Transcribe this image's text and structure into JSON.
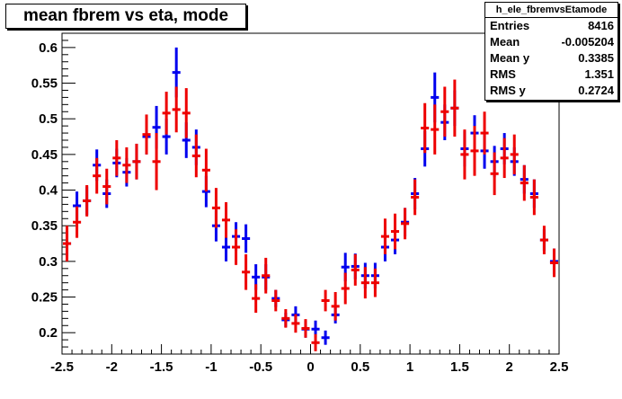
{
  "title": "mean fbrem vs eta, mode",
  "stats": {
    "name": "h_ele_fbremvsEtamode",
    "rows": [
      {
        "label": "Entries",
        "value": "8416"
      },
      {
        "label": "Mean",
        "value": "-0.005204"
      },
      {
        "label": "Mean y",
        "value": "0.3385"
      },
      {
        "label": "RMS",
        "value": "1.351"
      },
      {
        "label": "RMS y",
        "value": "0.2724"
      }
    ]
  },
  "chart_data": {
    "type": "scatter",
    "title": "mean fbrem vs eta, mode",
    "xlabel": "",
    "ylabel": "",
    "xlim": [
      -2.5,
      2.5
    ],
    "ylim": [
      0.17,
      0.62
    ],
    "x_ticks": [
      "-2.5",
      "-2",
      "-1.5",
      "-1",
      "-0.5",
      "0",
      "0.5",
      "1",
      "1.5",
      "2",
      "2.5"
    ],
    "y_ticks": [
      "0.2",
      "0.25",
      "0.3",
      "0.35",
      "0.4",
      "0.45",
      "0.5",
      "0.55",
      "0.6"
    ],
    "grid": false,
    "series": [
      {
        "color": "#0000ee",
        "points": [
          {
            "x": -2.45,
            "y": 0.325,
            "e": 0.018
          },
          {
            "x": -2.35,
            "y": 0.378,
            "e": 0.02
          },
          {
            "x": -2.25,
            "y": 0.385,
            "e": 0.02
          },
          {
            "x": -2.15,
            "y": 0.435,
            "e": 0.022
          },
          {
            "x": -2.05,
            "y": 0.395,
            "e": 0.02
          },
          {
            "x": -1.95,
            "y": 0.438,
            "e": 0.02
          },
          {
            "x": -1.85,
            "y": 0.425,
            "e": 0.02
          },
          {
            "x": -1.75,
            "y": 0.44,
            "e": 0.025
          },
          {
            "x": -1.65,
            "y": 0.475,
            "e": 0.025
          },
          {
            "x": -1.55,
            "y": 0.488,
            "e": 0.03
          },
          {
            "x": -1.45,
            "y": 0.475,
            "e": 0.025
          },
          {
            "x": -1.35,
            "y": 0.565,
            "e": 0.035
          },
          {
            "x": -1.25,
            "y": 0.47,
            "e": 0.025
          },
          {
            "x": -1.15,
            "y": 0.46,
            "e": 0.025
          },
          {
            "x": -1.05,
            "y": 0.398,
            "e": 0.022
          },
          {
            "x": -0.95,
            "y": 0.35,
            "e": 0.022
          },
          {
            "x": -0.85,
            "y": 0.32,
            "e": 0.02
          },
          {
            "x": -0.75,
            "y": 0.335,
            "e": 0.02
          },
          {
            "x": -0.65,
            "y": 0.332,
            "e": 0.02
          },
          {
            "x": -0.55,
            "y": 0.278,
            "e": 0.018
          },
          {
            "x": -0.45,
            "y": 0.278,
            "e": 0.018
          },
          {
            "x": -0.35,
            "y": 0.248,
            "e": 0.012
          },
          {
            "x": -0.25,
            "y": 0.218,
            "e": 0.01
          },
          {
            "x": -0.15,
            "y": 0.225,
            "e": 0.012
          },
          {
            "x": -0.05,
            "y": 0.205,
            "e": 0.012
          },
          {
            "x": 0.05,
            "y": 0.205,
            "e": 0.012
          },
          {
            "x": 0.15,
            "y": 0.193,
            "e": 0.01
          },
          {
            "x": 0.25,
            "y": 0.225,
            "e": 0.012
          },
          {
            "x": 0.35,
            "y": 0.292,
            "e": 0.02
          },
          {
            "x": 0.45,
            "y": 0.293,
            "e": 0.018
          },
          {
            "x": 0.55,
            "y": 0.28,
            "e": 0.018
          },
          {
            "x": 0.65,
            "y": 0.28,
            "e": 0.018
          },
          {
            "x": 0.75,
            "y": 0.32,
            "e": 0.02
          },
          {
            "x": 0.85,
            "y": 0.33,
            "e": 0.02
          },
          {
            "x": 0.95,
            "y": 0.355,
            "e": 0.02
          },
          {
            "x": 1.05,
            "y": 0.395,
            "e": 0.022
          },
          {
            "x": 1.15,
            "y": 0.458,
            "e": 0.025
          },
          {
            "x": 1.25,
            "y": 0.53,
            "e": 0.035
          },
          {
            "x": 1.35,
            "y": 0.495,
            "e": 0.025
          },
          {
            "x": 1.45,
            "y": 0.515,
            "e": 0.025
          },
          {
            "x": 1.55,
            "y": 0.458,
            "e": 0.025
          },
          {
            "x": 1.65,
            "y": 0.48,
            "e": 0.025
          },
          {
            "x": 1.75,
            "y": 0.455,
            "e": 0.025
          },
          {
            "x": 1.85,
            "y": 0.44,
            "e": 0.022
          },
          {
            "x": 1.95,
            "y": 0.458,
            "e": 0.022
          },
          {
            "x": 2.05,
            "y": 0.44,
            "e": 0.02
          },
          {
            "x": 2.15,
            "y": 0.415,
            "e": 0.02
          },
          {
            "x": 2.25,
            "y": 0.395,
            "e": 0.02
          },
          {
            "x": 2.35,
            "y": 0.33,
            "e": 0.015
          },
          {
            "x": 2.45,
            "y": 0.3,
            "e": 0.018
          }
        ]
      },
      {
        "color": "#ee0000",
        "points": [
          {
            "x": -2.45,
            "y": 0.325,
            "e": 0.025
          },
          {
            "x": -2.35,
            "y": 0.355,
            "e": 0.022
          },
          {
            "x": -2.25,
            "y": 0.385,
            "e": 0.022
          },
          {
            "x": -2.15,
            "y": 0.42,
            "e": 0.025
          },
          {
            "x": -2.05,
            "y": 0.405,
            "e": 0.025
          },
          {
            "x": -1.95,
            "y": 0.445,
            "e": 0.025
          },
          {
            "x": -1.85,
            "y": 0.435,
            "e": 0.025
          },
          {
            "x": -1.75,
            "y": 0.44,
            "e": 0.025
          },
          {
            "x": -1.65,
            "y": 0.478,
            "e": 0.028
          },
          {
            "x": -1.55,
            "y": 0.44,
            "e": 0.04
          },
          {
            "x": -1.45,
            "y": 0.508,
            "e": 0.03
          },
          {
            "x": -1.35,
            "y": 0.513,
            "e": 0.032
          },
          {
            "x": -1.25,
            "y": 0.508,
            "e": 0.035
          },
          {
            "x": -1.15,
            "y": 0.448,
            "e": 0.03
          },
          {
            "x": -1.05,
            "y": 0.428,
            "e": 0.03
          },
          {
            "x": -0.95,
            "y": 0.375,
            "e": 0.028
          },
          {
            "x": -0.85,
            "y": 0.358,
            "e": 0.025
          },
          {
            "x": -0.75,
            "y": 0.32,
            "e": 0.025
          },
          {
            "x": -0.65,
            "y": 0.285,
            "e": 0.025
          },
          {
            "x": -0.55,
            "y": 0.248,
            "e": 0.02
          },
          {
            "x": -0.45,
            "y": 0.28,
            "e": 0.025
          },
          {
            "x": -0.35,
            "y": 0.245,
            "e": 0.015
          },
          {
            "x": -0.25,
            "y": 0.22,
            "e": 0.013
          },
          {
            "x": -0.15,
            "y": 0.213,
            "e": 0.013
          },
          {
            "x": -0.05,
            "y": 0.206,
            "e": 0.013
          },
          {
            "x": 0.05,
            "y": 0.186,
            "e": 0.012
          },
          {
            "x": 0.15,
            "y": 0.245,
            "e": 0.015
          },
          {
            "x": 0.25,
            "y": 0.237,
            "e": 0.02
          },
          {
            "x": 0.35,
            "y": 0.262,
            "e": 0.022
          },
          {
            "x": 0.45,
            "y": 0.288,
            "e": 0.022
          },
          {
            "x": 0.55,
            "y": 0.27,
            "e": 0.022
          },
          {
            "x": 0.65,
            "y": 0.27,
            "e": 0.02
          },
          {
            "x": 0.75,
            "y": 0.335,
            "e": 0.025
          },
          {
            "x": 0.85,
            "y": 0.342,
            "e": 0.025
          },
          {
            "x": 0.95,
            "y": 0.353,
            "e": 0.022
          },
          {
            "x": 1.05,
            "y": 0.39,
            "e": 0.025
          },
          {
            "x": 1.15,
            "y": 0.487,
            "e": 0.035
          },
          {
            "x": 1.25,
            "y": 0.485,
            "e": 0.035
          },
          {
            "x": 1.35,
            "y": 0.51,
            "e": 0.035
          },
          {
            "x": 1.45,
            "y": 0.515,
            "e": 0.04
          },
          {
            "x": 1.55,
            "y": 0.45,
            "e": 0.035
          },
          {
            "x": 1.65,
            "y": 0.455,
            "e": 0.035
          },
          {
            "x": 1.75,
            "y": 0.48,
            "e": 0.03
          },
          {
            "x": 1.85,
            "y": 0.423,
            "e": 0.03
          },
          {
            "x": 1.95,
            "y": 0.445,
            "e": 0.028
          },
          {
            "x": 2.05,
            "y": 0.45,
            "e": 0.028
          },
          {
            "x": 2.15,
            "y": 0.41,
            "e": 0.025
          },
          {
            "x": 2.25,
            "y": 0.39,
            "e": 0.025
          },
          {
            "x": 2.35,
            "y": 0.33,
            "e": 0.02
          },
          {
            "x": 2.45,
            "y": 0.298,
            "e": 0.02
          }
        ]
      }
    ]
  }
}
